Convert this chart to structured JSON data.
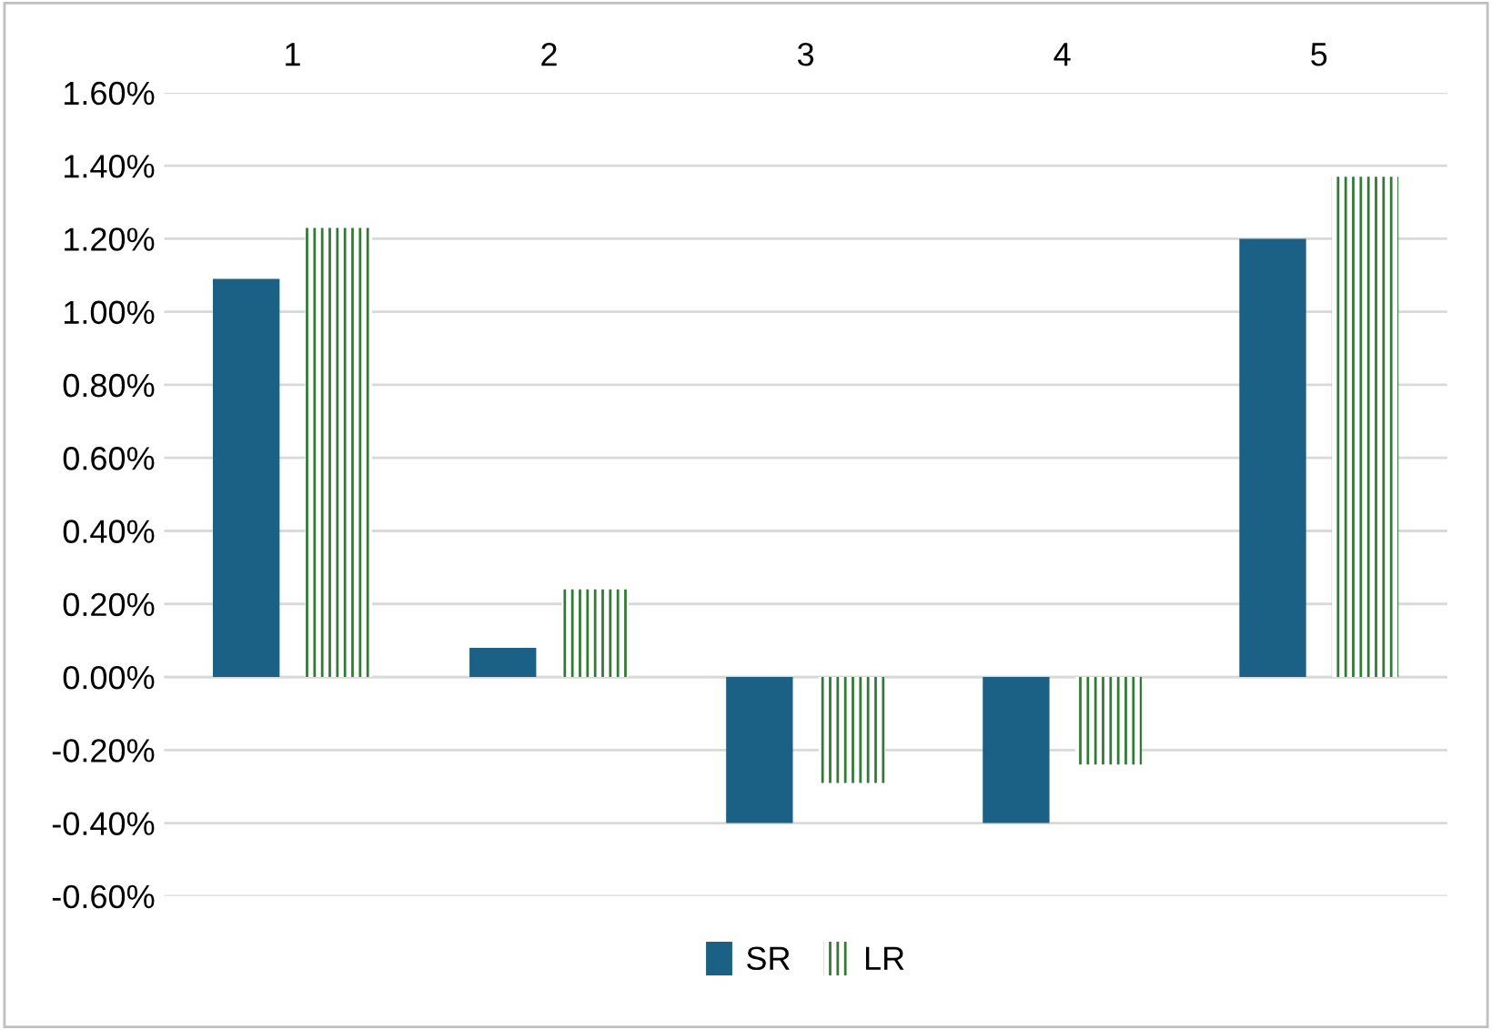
{
  "chart_data": {
    "type": "bar",
    "categories": [
      "1",
      "2",
      "3",
      "4",
      "5"
    ],
    "series": [
      {
        "name": "SR",
        "color": "#1a6185",
        "values": [
          1.09,
          0.08,
          -0.4,
          -0.4,
          1.2
        ]
      },
      {
        "name": "LR",
        "color": "#2e7d32",
        "values": [
          1.23,
          0.24,
          -0.29,
          -0.24,
          1.37
        ]
      }
    ],
    "ylim": [
      -0.6,
      1.6
    ],
    "yticks": [
      {
        "value": -0.6,
        "label": "-0.60%"
      },
      {
        "value": -0.4,
        "label": "-0.40%"
      },
      {
        "value": -0.2,
        "label": "-0.20%"
      },
      {
        "value": 0,
        "label": "0.00%"
      },
      {
        "value": 0.2,
        "label": "0.20%"
      },
      {
        "value": 0.4,
        "label": "0.40%"
      },
      {
        "value": 0.6,
        "label": "0.60%"
      },
      {
        "value": 0.8,
        "label": "0.80%"
      },
      {
        "value": 1.0,
        "label": "1.00%"
      },
      {
        "value": 1.2,
        "label": "1.20%"
      },
      {
        "value": 1.4,
        "label": "1.40%"
      },
      {
        "value": 1.6,
        "label": "1.60%"
      }
    ],
    "grid": "y",
    "legend": "bottom"
  }
}
